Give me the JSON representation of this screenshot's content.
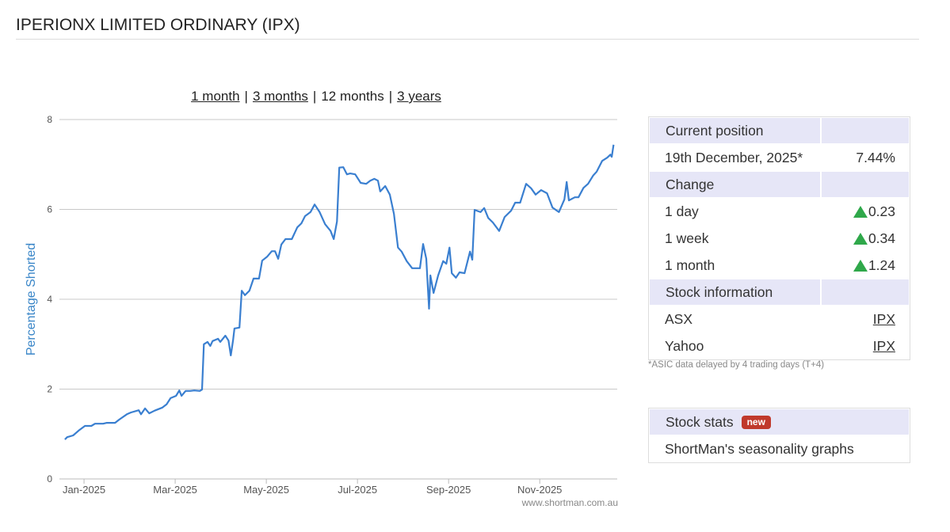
{
  "header": {
    "title": "IPERIONX LIMITED ORDINARY (IPX)"
  },
  "periods": [
    "1 month",
    "3 months",
    "12 months",
    "3 years"
  ],
  "selected_period": 2,
  "period_separator": "|",
  "chart_data": {
    "type": "line",
    "y_label": "Percentage Shorted",
    "watermark": "www.shortman.com.au",
    "color": "#3a7fd0",
    "grid": true,
    "xlim": [
      -0.54,
      11.7
    ],
    "xticks": [
      {
        "value": 0,
        "label": "Jan-2025"
      },
      {
        "value": 2,
        "label": "Mar-2025"
      },
      {
        "value": 4,
        "label": "May-2025"
      },
      {
        "value": 6,
        "label": "Jul-2025"
      },
      {
        "value": 8,
        "label": "Sep-2025"
      },
      {
        "value": 10,
        "label": "Nov-2025"
      }
    ],
    "ylim": [
      0,
      8
    ],
    "yticks": [
      0,
      2,
      4,
      6,
      8
    ],
    "x": [
      -0.42,
      -0.37,
      -0.24,
      -0.1,
      0.02,
      0.16,
      0.24,
      0.42,
      0.5,
      0.68,
      0.77,
      0.94,
      1.03,
      1.2,
      1.25,
      1.34,
      1.43,
      1.55,
      1.72,
      1.81,
      1.9,
      2.02,
      2.09,
      2.14,
      2.23,
      2.33,
      2.42,
      2.54,
      2.59,
      2.63,
      2.71,
      2.77,
      2.82,
      2.94,
      2.99,
      3.1,
      3.17,
      3.22,
      3.27,
      3.3,
      3.41,
      3.46,
      3.53,
      3.63,
      3.72,
      3.84,
      3.91,
      4.02,
      4.12,
      4.19,
      4.26,
      4.33,
      4.42,
      4.56,
      4.68,
      4.77,
      4.85,
      4.97,
      5.06,
      5.17,
      5.29,
      5.41,
      5.48,
      5.55,
      5.6,
      5.69,
      5.77,
      5.84,
      5.95,
      6.07,
      6.19,
      6.28,
      6.37,
      6.45,
      6.5,
      6.61,
      6.71,
      6.8,
      6.89,
      6.97,
      7.08,
      7.2,
      7.37,
      7.44,
      7.51,
      7.57,
      7.6,
      7.67,
      7.77,
      7.88,
      7.95,
      8.02,
      8.07,
      8.16,
      8.24,
      8.35,
      8.47,
      8.52,
      8.57,
      8.7,
      8.78,
      8.87,
      8.97,
      9.11,
      9.23,
      9.37,
      9.46,
      9.57,
      9.7,
      9.81,
      9.91,
      10.03,
      10.16,
      10.28,
      10.42,
      10.54,
      10.59,
      10.64,
      10.77,
      10.85,
      10.96,
      11.06,
      11.17,
      11.25,
      11.37,
      11.48,
      11.55,
      11.58,
      11.62
    ],
    "values": [
      0.88,
      0.93,
      0.97,
      1.09,
      1.18,
      1.18,
      1.23,
      1.23,
      1.25,
      1.25,
      1.32,
      1.44,
      1.48,
      1.53,
      1.44,
      1.57,
      1.46,
      1.52,
      1.59,
      1.66,
      1.8,
      1.85,
      1.97,
      1.85,
      1.96,
      1.96,
      1.97,
      1.96,
      1.99,
      3.0,
      3.05,
      2.96,
      3.07,
      3.12,
      3.05,
      3.19,
      3.08,
      2.75,
      3.08,
      3.35,
      3.37,
      4.19,
      4.09,
      4.19,
      4.46,
      4.46,
      4.86,
      4.95,
      5.07,
      5.07,
      4.9,
      5.22,
      5.34,
      5.34,
      5.6,
      5.69,
      5.85,
      5.94,
      6.11,
      5.94,
      5.67,
      5.52,
      5.34,
      5.73,
      6.93,
      6.94,
      6.78,
      6.8,
      6.78,
      6.59,
      6.57,
      6.64,
      6.68,
      6.64,
      6.4,
      6.52,
      6.33,
      5.9,
      5.15,
      5.06,
      4.85,
      4.69,
      4.69,
      5.23,
      4.9,
      3.79,
      4.53,
      4.14,
      4.53,
      4.85,
      4.79,
      5.15,
      4.58,
      4.48,
      4.6,
      4.58,
      5.06,
      4.88,
      5.99,
      5.94,
      6.03,
      5.81,
      5.71,
      5.52,
      5.83,
      5.97,
      6.15,
      6.15,
      6.57,
      6.47,
      6.33,
      6.43,
      6.36,
      6.04,
      5.94,
      6.22,
      6.61,
      6.2,
      6.27,
      6.27,
      6.48,
      6.57,
      6.75,
      6.84,
      7.08,
      7.15,
      7.22,
      7.17,
      7.44
    ]
  },
  "position_table": {
    "sections": [
      {
        "heading": "Current position",
        "rows": [
          {
            "label": "19th December, 2025*",
            "value": "7.44%"
          }
        ]
      },
      {
        "heading": "Change",
        "rows": [
          {
            "label": "1 day",
            "value": 0.23,
            "direction": "up"
          },
          {
            "label": "1 week",
            "value": 0.34,
            "direction": "up"
          },
          {
            "label": "1 month",
            "value": 1.24,
            "direction": "up"
          }
        ]
      },
      {
        "heading": "Stock information",
        "rows": [
          {
            "label": "ASX",
            "link": "IPX"
          },
          {
            "label": "Yahoo",
            "link": "IPX"
          }
        ]
      }
    ],
    "footnote": "*ASIC data delayed by 4 trading days (T+4)"
  },
  "stats_box": {
    "heading": "Stock stats",
    "badge": "new",
    "text": "ShortMan's",
    "link": "seasonality graphs"
  }
}
